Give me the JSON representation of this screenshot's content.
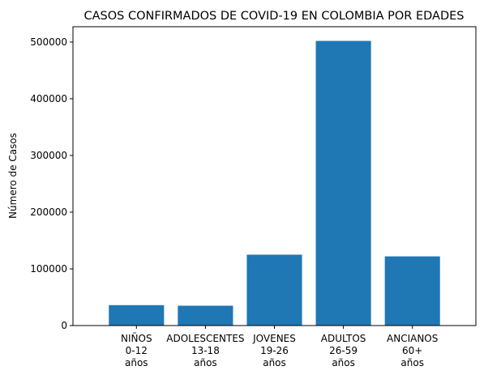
{
  "chart_data": {
    "type": "bar",
    "title": "CASOS CONFIRMADOS DE COVID-19 EN COLOMBIA POR EDADES",
    "xlabel": "",
    "ylabel": "Número de Casos",
    "categories": [
      [
        "NIÑOS",
        "0-12",
        "años"
      ],
      [
        "ADOLESCENTES",
        "13-18",
        "años"
      ],
      [
        "JOVENES",
        "19-26",
        "años"
      ],
      [
        "ADULTOS",
        "26-59",
        "años"
      ],
      [
        "ANCIANOS",
        "60+",
        "años"
      ]
    ],
    "values": [
      36000,
      35000,
      125000,
      502000,
      122000
    ],
    "ylim": [
      0,
      527000
    ],
    "yticks": [
      0,
      100000,
      200000,
      300000,
      400000,
      500000
    ],
    "grid": false,
    "bar_color": "#1f77b4"
  }
}
